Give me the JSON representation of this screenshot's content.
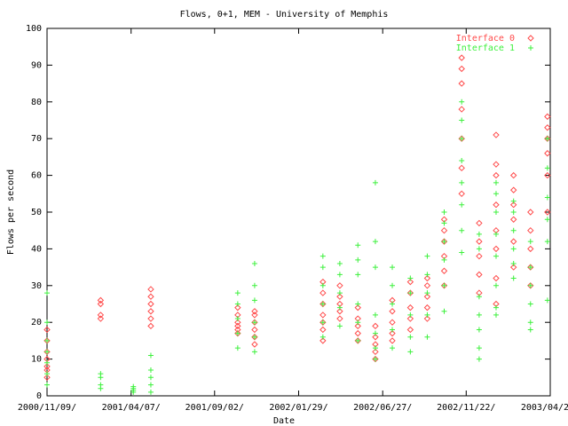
{
  "chart_data": {
    "type": "scatter",
    "title": "Flows, 0+1, MEM - University of Memphis",
    "xlabel": "Date",
    "ylabel": "Flows per second",
    "xlim": [
      "2000/11/09",
      "2003/04/20"
    ],
    "xticks": [
      {
        "value": "2000/11/09",
        "label": "2000/11/09/"
      },
      {
        "value": "2001/04/07",
        "label": "2001/04/07/"
      },
      {
        "value": "2001/09/02",
        "label": "2001/09/02/"
      },
      {
        "value": "2002/01/29",
        "label": "2002/01/29/"
      },
      {
        "value": "2002/06/27",
        "label": "2002/06/27/"
      },
      {
        "value": "2002/11/22",
        "label": "2002/11/22/"
      },
      {
        "value": "2003/04/20",
        "label": "2003/04/20/"
      }
    ],
    "ylim": [
      0,
      100
    ],
    "yticks": [
      0,
      10,
      20,
      30,
      40,
      50,
      60,
      70,
      80,
      90,
      100
    ],
    "grid": false,
    "legend": "top-right",
    "series": [
      {
        "name": "Interface 0",
        "color": "#ff4a4a",
        "marker": "diamond",
        "x": [
          "2000/11/09",
          "2000/11/09",
          "2000/11/09",
          "2000/11/09",
          "2000/11/09",
          "2000/11/09",
          "2000/11/09",
          "2001/02/12",
          "2001/02/12",
          "2001/02/12",
          "2001/02/12",
          "2001/05/12",
          "2001/05/12",
          "2001/05/12",
          "2001/05/12",
          "2001/05/12",
          "2001/05/12",
          "2001/10/13",
          "2001/10/13",
          "2001/10/13",
          "2001/10/13",
          "2001/10/13",
          "2001/10/13",
          "2001/11/12",
          "2001/11/12",
          "2001/11/12",
          "2001/11/12",
          "2001/11/12",
          "2001/11/12",
          "2002/03/13",
          "2002/03/13",
          "2002/03/13",
          "2002/03/13",
          "2002/03/13",
          "2002/03/13",
          "2002/03/13",
          "2002/04/12",
          "2002/04/12",
          "2002/04/12",
          "2002/04/12",
          "2002/04/12",
          "2002/05/14",
          "2002/05/14",
          "2002/05/14",
          "2002/05/14",
          "2002/05/14",
          "2002/06/14",
          "2002/06/14",
          "2002/06/14",
          "2002/06/14",
          "2002/06/14",
          "2002/07/14",
          "2002/07/14",
          "2002/07/14",
          "2002/07/14",
          "2002/07/14",
          "2002/08/15",
          "2002/08/15",
          "2002/08/15",
          "2002/08/15",
          "2002/08/15",
          "2002/09/14",
          "2002/09/14",
          "2002/09/14",
          "2002/09/14",
          "2002/09/14",
          "2002/10/14",
          "2002/10/14",
          "2002/10/14",
          "2002/10/14",
          "2002/10/14",
          "2002/10/14",
          "2002/11/14",
          "2002/11/14",
          "2002/11/14",
          "2002/11/14",
          "2002/11/14",
          "2002/11/14",
          "2002/11/14",
          "2002/12/15",
          "2002/12/15",
          "2002/12/15",
          "2002/12/15",
          "2002/12/15",
          "2003/01/14",
          "2003/01/14",
          "2003/01/14",
          "2003/01/14",
          "2003/01/14",
          "2003/01/14",
          "2003/01/14",
          "2003/01/14",
          "2003/02/14",
          "2003/02/14",
          "2003/02/14",
          "2003/02/14",
          "2003/02/14",
          "2003/02/14",
          "2003/03/16",
          "2003/03/16",
          "2003/03/16",
          "2003/03/16",
          "2003/03/16",
          "2003/04/15",
          "2003/04/15",
          "2003/04/15",
          "2003/04/15",
          "2003/04/15",
          "2003/04/15"
        ],
        "values": [
          5,
          7,
          8,
          10,
          12,
          15,
          18,
          21,
          22,
          25,
          26,
          19,
          21,
          23,
          25,
          27,
          29,
          17,
          18,
          19,
          20,
          22,
          24,
          14,
          16,
          18,
          20,
          22,
          23,
          15,
          18,
          20,
          22,
          25,
          28,
          31,
          21,
          23,
          25,
          27,
          30,
          15,
          17,
          19,
          21,
          24,
          10,
          12,
          14,
          16,
          19,
          15,
          17,
          20,
          23,
          26,
          18,
          21,
          24,
          28,
          31,
          21,
          24,
          27,
          30,
          32,
          30,
          34,
          38,
          42,
          45,
          48,
          55,
          62,
          70,
          78,
          85,
          89,
          92,
          28,
          33,
          38,
          42,
          47,
          25,
          32,
          40,
          45,
          52,
          60,
          63,
          71,
          35,
          42,
          48,
          52,
          56,
          60,
          30,
          35,
          40,
          45,
          50,
          50,
          60,
          66,
          70,
          73,
          76
        ]
      },
      {
        "name": "Interface 1",
        "color": "#3cf03c",
        "marker": "plus",
        "x": [
          "2000/11/09",
          "2000/11/09",
          "2000/11/09",
          "2000/11/09",
          "2000/11/09",
          "2000/11/09",
          "2000/11/09",
          "2001/02/12",
          "2001/02/12",
          "2001/02/12",
          "2001/02/12",
          "2001/04/11",
          "2001/04/11",
          "2001/04/11",
          "2001/04/11",
          "2001/05/12",
          "2001/05/12",
          "2001/05/12",
          "2001/05/12",
          "2001/05/12",
          "2001/10/13",
          "2001/10/13",
          "2001/10/13",
          "2001/10/13",
          "2001/10/13",
          "2001/11/12",
          "2001/11/12",
          "2001/11/12",
          "2001/11/12",
          "2001/11/12",
          "2001/11/12",
          "2002/03/13",
          "2002/03/13",
          "2002/03/13",
          "2002/03/13",
          "2002/03/13",
          "2002/03/13",
          "2002/04/12",
          "2002/04/12",
          "2002/04/12",
          "2002/04/12",
          "2002/04/12",
          "2002/05/14",
          "2002/05/14",
          "2002/05/14",
          "2002/05/14",
          "2002/05/14",
          "2002/05/14",
          "2002/06/14",
          "2002/06/14",
          "2002/06/14",
          "2002/06/14",
          "2002/06/14",
          "2002/06/14",
          "2002/06/14",
          "2002/07/14",
          "2002/07/14",
          "2002/07/14",
          "2002/07/14",
          "2002/07/14",
          "2002/08/15",
          "2002/08/15",
          "2002/08/15",
          "2002/08/15",
          "2002/08/15",
          "2002/09/14",
          "2002/09/14",
          "2002/09/14",
          "2002/09/14",
          "2002/09/14",
          "2002/10/14",
          "2002/10/14",
          "2002/10/14",
          "2002/10/14",
          "2002/10/14",
          "2002/10/14",
          "2002/11/14",
          "2002/11/14",
          "2002/11/14",
          "2002/11/14",
          "2002/11/14",
          "2002/11/14",
          "2002/11/14",
          "2002/11/14",
          "2002/12/15",
          "2002/12/15",
          "2002/12/15",
          "2002/12/15",
          "2002/12/15",
          "2002/12/15",
          "2002/12/15",
          "2003/01/14",
          "2003/01/14",
          "2003/01/14",
          "2003/01/14",
          "2003/01/14",
          "2003/01/14",
          "2003/01/14",
          "2003/01/14",
          "2003/02/14",
          "2003/02/14",
          "2003/02/14",
          "2003/02/14",
          "2003/02/14",
          "2003/02/14",
          "2003/03/16",
          "2003/03/16",
          "2003/03/16",
          "2003/03/16",
          "2003/03/16",
          "2003/03/16",
          "2003/04/15",
          "2003/04/15",
          "2003/04/15",
          "2003/04/15",
          "2003/04/15",
          "2003/04/15"
        ],
        "values": [
          3,
          6,
          9,
          12,
          15,
          20,
          28,
          2,
          3,
          5,
          6,
          1,
          1.5,
          2,
          2.5,
          1,
          3,
          5,
          7,
          11,
          13,
          17,
          21,
          25,
          28,
          12,
          16,
          20,
          26,
          30,
          36,
          16,
          20,
          25,
          30,
          35,
          38,
          19,
          24,
          28,
          33,
          36,
          15,
          20,
          25,
          33,
          37,
          41,
          10,
          13,
          17,
          22,
          35,
          42,
          58,
          13,
          18,
          25,
          30,
          35,
          12,
          16,
          22,
          28,
          32,
          16,
          22,
          28,
          33,
          38,
          23,
          30,
          37,
          42,
          47,
          50,
          39,
          45,
          52,
          58,
          64,
          70,
          75,
          80,
          10,
          13,
          18,
          22,
          27,
          40,
          44,
          22,
          24,
          30,
          38,
          44,
          50,
          55,
          58,
          32,
          36,
          40,
          45,
          50,
          53,
          18,
          20,
          25,
          30,
          35,
          42,
          26,
          42,
          48,
          54,
          62,
          70
        ]
      }
    ]
  }
}
